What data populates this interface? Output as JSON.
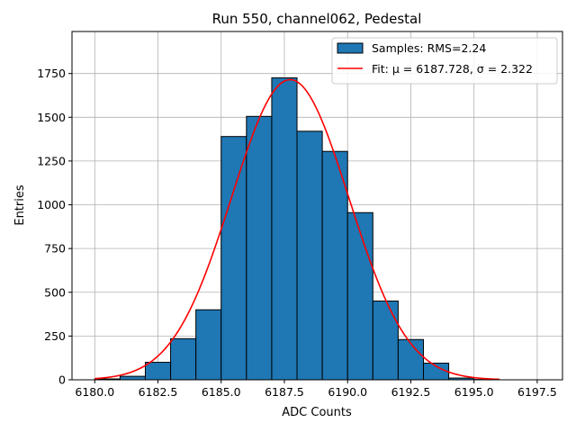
{
  "chart_data": {
    "type": "bar",
    "title": "Run 550, channel062, Pedestal",
    "xlabel": "ADC Counts",
    "ylabel": "Entries",
    "xlim": [
      6179.1,
      6198.5
    ],
    "ylim": [
      0,
      1990
    ],
    "x_ticks": [
      6180.0,
      6182.5,
      6185.0,
      6187.5,
      6190.0,
      6192.5,
      6195.0,
      6197.5
    ],
    "x_tick_labels": [
      "6180.0",
      "6182.5",
      "6185.0",
      "6187.5",
      "6190.0",
      "6192.5",
      "6195.0",
      "6197.5"
    ],
    "y_ticks": [
      0,
      250,
      500,
      750,
      1000,
      1250,
      1500,
      1750
    ],
    "y_tick_labels": [
      "0",
      "250",
      "500",
      "750",
      "1000",
      "1250",
      "1500",
      "1750"
    ],
    "grid": true,
    "bins": {
      "edges": [
        6180,
        6181,
        6182,
        6183,
        6184,
        6185,
        6186,
        6187,
        6188,
        6189,
        6190,
        6191,
        6192,
        6193,
        6194,
        6195,
        6196,
        6197
      ],
      "counts": [
        5,
        20,
        100,
        235,
        400,
        1390,
        1505,
        1725,
        1420,
        1305,
        955,
        450,
        230,
        95,
        10,
        2,
        0
      ],
      "color": "#1f77b4",
      "edgecolor": "#000000"
    },
    "fit": {
      "type": "gaussian",
      "mu": 6187.728,
      "sigma": 2.322,
      "amplitude": 1715,
      "x_range": [
        6180,
        6196
      ],
      "color": "#ff0000"
    },
    "legend": {
      "position": "top-right",
      "entries": [
        {
          "label": "Samples: RMS=2.24",
          "kind": "patch",
          "color": "#1f77b4"
        },
        {
          "label": "Fit: μ = 6187.728, σ = 2.322",
          "kind": "line",
          "color": "#ff0000"
        }
      ]
    }
  }
}
